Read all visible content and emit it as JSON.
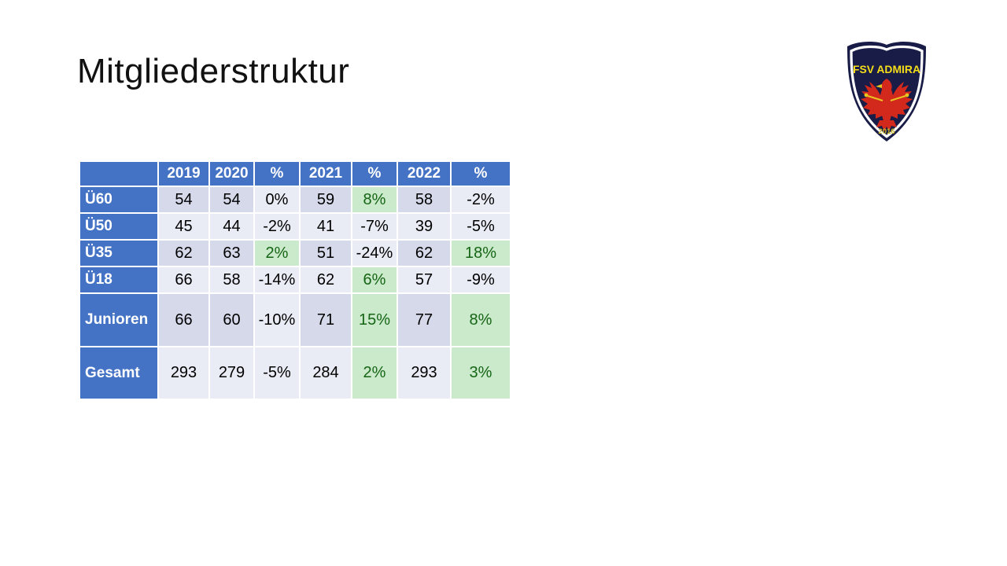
{
  "title": "Mitgliederstruktur",
  "logo": {
    "club_name": "FSV ADMIRA",
    "founded_year": "2016",
    "colors": {
      "navy": "#191C47",
      "eagle_red": "#D3291C",
      "text_yellow": "#F5DE19",
      "year_gold": "#C9B62B",
      "ring_white": "#FFFFFF"
    }
  },
  "colors": {
    "header_blue": "#4472C4",
    "band_dark": "#D5D9EA",
    "band_light": "#E9EBF5",
    "positive_bg": "#CBE9CB",
    "positive_text": "#156515"
  },
  "table": {
    "header": [
      "",
      "2019",
      "2020",
      "%",
      "2021",
      "%",
      "2022",
      "%"
    ],
    "rows": [
      {
        "label": "Ü60",
        "cells": [
          {
            "v": "54",
            "bg": "dark"
          },
          {
            "v": "54",
            "bg": "dark"
          },
          {
            "v": "0%",
            "bg": "light"
          },
          {
            "v": "59",
            "bg": "dark"
          },
          {
            "v": "8%",
            "bg": "green"
          },
          {
            "v": "58",
            "bg": "dark"
          },
          {
            "v": "-2%",
            "bg": "light"
          }
        ]
      },
      {
        "label": "Ü50",
        "cells": [
          {
            "v": "45",
            "bg": "light"
          },
          {
            "v": "44",
            "bg": "light"
          },
          {
            "v": "-2%",
            "bg": "light"
          },
          {
            "v": "41",
            "bg": "light"
          },
          {
            "v": "-7%",
            "bg": "light"
          },
          {
            "v": "39",
            "bg": "light"
          },
          {
            "v": "-5%",
            "bg": "light"
          }
        ]
      },
      {
        "label": "Ü35",
        "cells": [
          {
            "v": "62",
            "bg": "dark"
          },
          {
            "v": "63",
            "bg": "dark"
          },
          {
            "v": "2%",
            "bg": "green"
          },
          {
            "v": "51",
            "bg": "dark"
          },
          {
            "v": "-24%",
            "bg": "light"
          },
          {
            "v": "62",
            "bg": "dark"
          },
          {
            "v": "18%",
            "bg": "green"
          }
        ]
      },
      {
        "label": "Ü18",
        "cells": [
          {
            "v": "66",
            "bg": "light"
          },
          {
            "v": "58",
            "bg": "light"
          },
          {
            "v": "-14%",
            "bg": "light"
          },
          {
            "v": "62",
            "bg": "light"
          },
          {
            "v": "6%",
            "bg": "green"
          },
          {
            "v": "57",
            "bg": "light"
          },
          {
            "v": "-9%",
            "bg": "light"
          }
        ]
      },
      {
        "label": "Junioren",
        "cells": [
          {
            "v": "66",
            "bg": "dark"
          },
          {
            "v": "60",
            "bg": "dark"
          },
          {
            "v": "-10%",
            "bg": "light"
          },
          {
            "v": "71",
            "bg": "dark"
          },
          {
            "v": "15%",
            "bg": "green"
          },
          {
            "v": "77",
            "bg": "dark"
          },
          {
            "v": "8%",
            "bg": "green"
          }
        ]
      },
      {
        "label": "Gesamt",
        "cells": [
          {
            "v": "293",
            "bg": "light"
          },
          {
            "v": "279",
            "bg": "light"
          },
          {
            "v": "-5%",
            "bg": "light"
          },
          {
            "v": "284",
            "bg": "light"
          },
          {
            "v": "2%",
            "bg": "green"
          },
          {
            "v": "293",
            "bg": "light"
          },
          {
            "v": "3%",
            "bg": "green"
          }
        ]
      }
    ]
  }
}
